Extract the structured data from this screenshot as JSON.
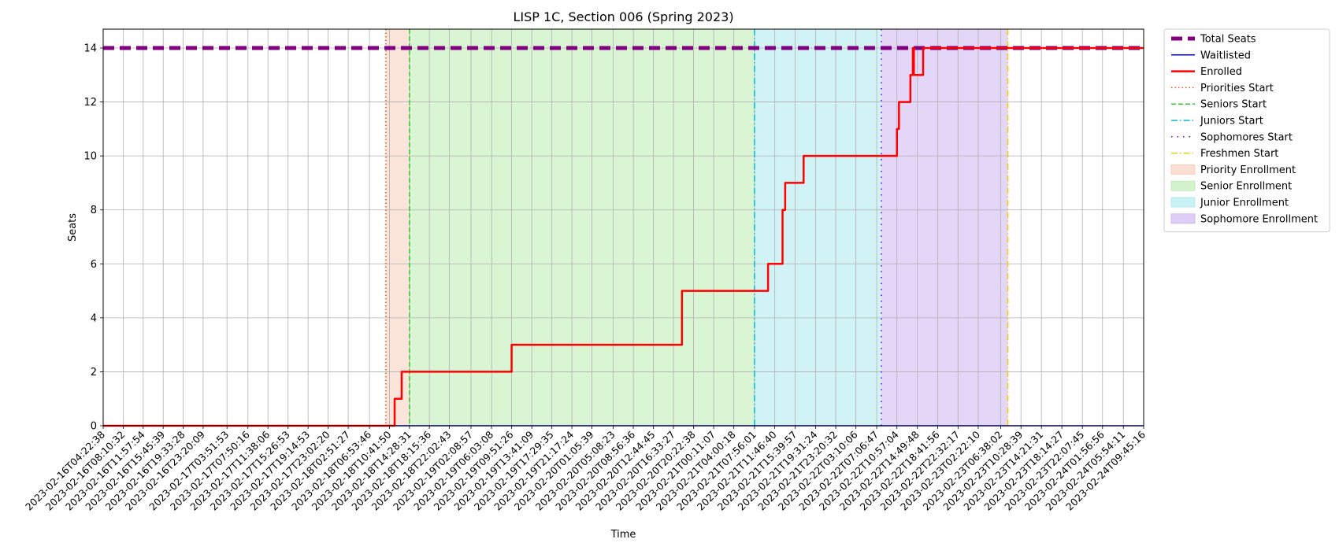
{
  "chart_data": {
    "type": "line",
    "title": "LISP 1C, Section 006 (Spring 2023)",
    "xlabel": "Time",
    "ylabel": "Seats",
    "ylim": [
      0,
      14.7
    ],
    "xlim": [
      "2023-02-16T04:22:38",
      "2023-02-24T09:45:16"
    ],
    "grid": true,
    "legend_position": "outside right, top",
    "x_tick_labels": [
      "2023-02-16T04:22:38",
      "2023-02-16T08:10:32",
      "2023-02-16T11:57:54",
      "2023-02-16T15:45:39",
      "2023-02-16T19:33:28",
      "2023-02-16T23:20:09",
      "2023-02-17T03:51:53",
      "2023-02-17T07:50:16",
      "2023-02-17T11:38:06",
      "2023-02-17T15:26:53",
      "2023-02-17T19:14:53",
      "2023-02-17T23:02:20",
      "2023-02-18T02:51:27",
      "2023-02-18T06:53:46",
      "2023-02-18T10:41:50",
      "2023-02-18T14:28:31",
      "2023-02-18T18:15:36",
      "2023-02-18T22:02:43",
      "2023-02-19T02:08:57",
      "2023-02-19T06:03:08",
      "2023-02-19T09:51:26",
      "2023-02-19T13:41:09",
      "2023-02-19T17:29:35",
      "2023-02-19T21:17:24",
      "2023-02-20T01:05:39",
      "2023-02-20T05:08:23",
      "2023-02-20T08:56:36",
      "2023-02-20T12:44:45",
      "2023-02-20T16:33:27",
      "2023-02-20T20:22:38",
      "2023-02-21T00:11:07",
      "2023-02-21T04:00:18",
      "2023-02-21T07:56:01",
      "2023-02-21T11:46:40",
      "2023-02-21T15:39:57",
      "2023-02-21T19:31:24",
      "2023-02-21T23:20:32",
      "2023-02-22T03:10:06",
      "2023-02-22T07:06:47",
      "2023-02-22T10:57:04",
      "2023-02-22T14:49:48",
      "2023-02-22T18:41:56",
      "2023-02-22T22:32:17",
      "2023-02-23T02:22:10",
      "2023-02-23T06:38:02",
      "2023-02-23T10:28:39",
      "2023-02-23T14:21:31",
      "2023-02-23T18:14:27",
      "2023-02-23T22:07:45",
      "2023-02-24T01:56:56",
      "2023-02-24T05:54:11",
      "2023-02-24T09:45:16"
    ],
    "y_ticks": [
      0,
      2,
      4,
      6,
      8,
      10,
      12,
      14
    ],
    "series": [
      {
        "name": "Total Seats",
        "color": "#800080",
        "style": "dashed-thick",
        "points": [
          [
            "2023-02-16T04:22:38",
            14
          ],
          [
            "2023-02-24T09:45:16",
            14
          ]
        ]
      },
      {
        "name": "Waitlisted",
        "color": "#0000ff",
        "style": "solid",
        "points": [
          [
            "2023-02-16T04:22:38",
            0
          ],
          [
            "2023-02-24T09:45:16",
            0
          ]
        ]
      },
      {
        "name": "Enrolled",
        "color": "#ff0000",
        "style": "solid-thick",
        "step": true,
        "points": [
          [
            "2023-02-16T04:22:38",
            0
          ],
          [
            "2023-02-18T11:40:00",
            1
          ],
          [
            "2023-02-18T13:00:00",
            2
          ],
          [
            "2023-02-19T09:51:26",
            3
          ],
          [
            "2023-02-20T18:10:00",
            5
          ],
          [
            "2023-02-21T10:30:00",
            6
          ],
          [
            "2023-02-21T13:15:00",
            8
          ],
          [
            "2023-02-21T13:45:00",
            9
          ],
          [
            "2023-02-21T17:15:00",
            10
          ],
          [
            "2023-02-22T10:57:04",
            11
          ],
          [
            "2023-02-22T11:20:00",
            12
          ],
          [
            "2023-02-22T13:30:00",
            13
          ],
          [
            "2023-02-22T13:58:00",
            14
          ],
          [
            "2023-02-22T14:10:00",
            13
          ],
          [
            "2023-02-22T15:55:00",
            14
          ],
          [
            "2023-02-24T09:45:16",
            14
          ]
        ]
      }
    ],
    "vertical_lines": [
      {
        "name": "Priorities Start",
        "time": "2023-02-18T10:00:00",
        "color": "#ff4500",
        "style": "dotted"
      },
      {
        "name": "Seniors Start",
        "time": "2023-02-18T14:28:31",
        "color": "#2ecc2e",
        "style": "dashed"
      },
      {
        "name": "Juniors Start",
        "time": "2023-02-21T07:56:01",
        "color": "#00bcd4",
        "style": "dashdot"
      },
      {
        "name": "Sophomores Start",
        "time": "2023-02-22T08:00:00",
        "color": "#5500ff",
        "style": "loosedot"
      },
      {
        "name": "Freshmen Start",
        "time": "2023-02-23T08:00:00",
        "color": "#e6d200",
        "style": "dashdot"
      }
    ],
    "shaded_regions": [
      {
        "name": "Priority Enrollment",
        "start": "2023-02-18T10:00:00",
        "end": "2023-02-18T14:28:31",
        "color": "#f7c9b4"
      },
      {
        "name": "Senior Enrollment",
        "start": "2023-02-18T14:28:31",
        "end": "2023-02-21T07:56:01",
        "color": "#b5ebaa"
      },
      {
        "name": "Junior Enrollment",
        "start": "2023-02-21T07:56:01",
        "end": "2023-02-22T08:00:00",
        "color": "#a6e8ee"
      },
      {
        "name": "Sophomore Enrollment",
        "start": "2023-02-22T08:00:00",
        "end": "2023-02-23T08:00:00",
        "color": "#c8aeee"
      }
    ]
  }
}
